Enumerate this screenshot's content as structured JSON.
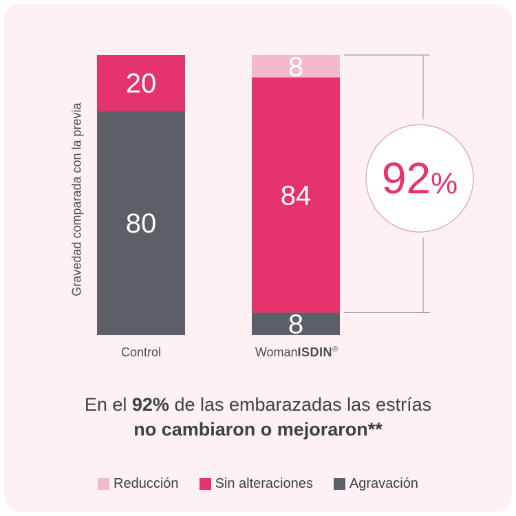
{
  "chart_data": {
    "type": "bar",
    "stacked": true,
    "ylabel": "Gravedad comparada con la previa",
    "categories": [
      "Control",
      "Woman ISDIN"
    ],
    "series": [
      {
        "name": "Reducción",
        "color": "#f5b9cd",
        "values": [
          0,
          8
        ]
      },
      {
        "name": "Sin alteraciones",
        "color": "#e5336d",
        "values": [
          20,
          84
        ]
      },
      {
        "name": "Agravación",
        "color": "#5c6066",
        "values": [
          80,
          8
        ]
      }
    ],
    "ylim": [
      0,
      100
    ],
    "annotation": {
      "value": "92%",
      "label_number": "92",
      "label_unit": "%"
    },
    "legend_position": "bottom",
    "grid": false
  },
  "xlabels": {
    "control": "Control",
    "woman_prefix": "Woman",
    "woman_brand": "ISDIN",
    "woman_mark": "®"
  },
  "caption": {
    "line1_pre": "En el ",
    "line1_bold": "92%",
    "line1_post": " de las embarazadas las estrías",
    "line2_bold": "no cambiaron o mejoraron**"
  },
  "legend": [
    {
      "label": "Reducción",
      "color": "#f5b9cd"
    },
    {
      "label": "Sin alteraciones",
      "color": "#e5336d"
    },
    {
      "label": "Agravación",
      "color": "#5c6066"
    }
  ]
}
